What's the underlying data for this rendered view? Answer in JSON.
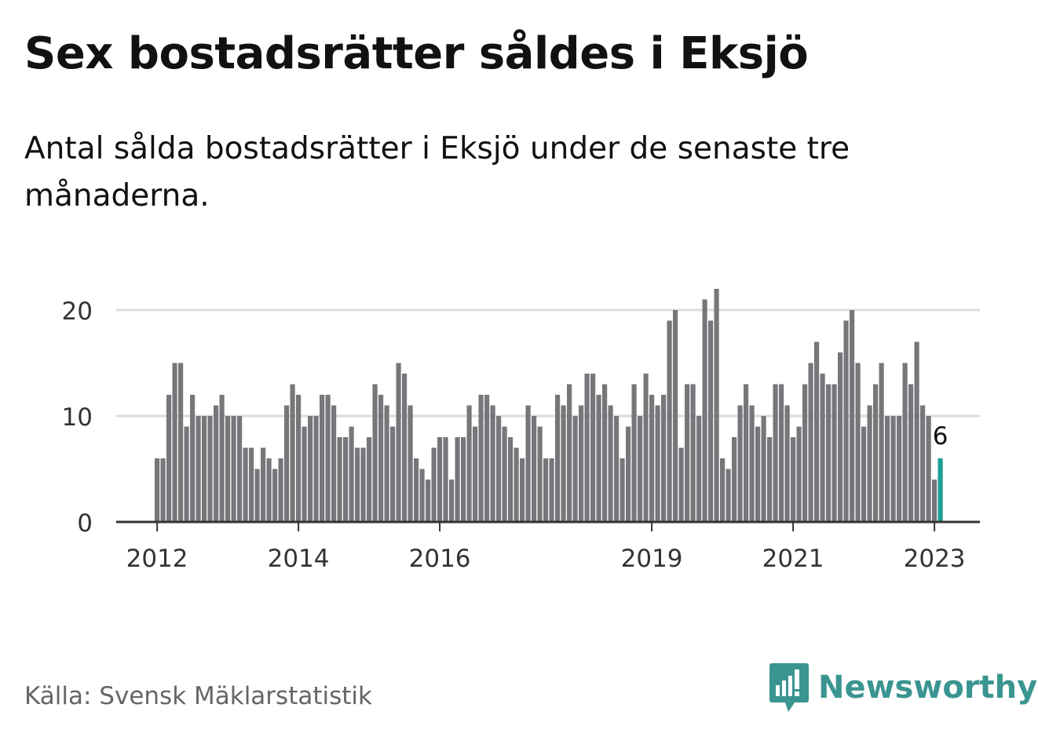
{
  "header": {
    "title": "Sex bostadsrätter såldes i Eksjö",
    "subtitle": "Antal sålda bostadsrätter i Eksjö under de senaste tre månaderna."
  },
  "footer": {
    "source": "Källa: Svensk Mäklarstatistik",
    "brand": "Newsworthy"
  },
  "colors": {
    "bar": "#77767a",
    "highlight": "#1b9e94",
    "grid": "#dcdcdc",
    "axis": "#333333",
    "brand": "#3a9591"
  },
  "chart_data": {
    "type": "bar",
    "title": "Sex bostadsrätter såldes i Eksjö",
    "xlabel": "",
    "ylabel": "",
    "ylim": [
      0,
      22
    ],
    "yticks": [
      0,
      10,
      20
    ],
    "x_start": 2012.0,
    "x_step": 0.08333,
    "xticks": [
      "2012",
      "2014",
      "2016",
      "2019",
      "2021",
      "2023"
    ],
    "xtick_values": [
      2012,
      2014,
      2016,
      2019,
      2021,
      2023
    ],
    "values": [
      6,
      6,
      12,
      15,
      15,
      9,
      12,
      10,
      10,
      10,
      11,
      12,
      10,
      10,
      10,
      7,
      7,
      5,
      7,
      6,
      5,
      6,
      11,
      13,
      12,
      9,
      10,
      10,
      12,
      12,
      11,
      8,
      8,
      9,
      7,
      7,
      8,
      13,
      12,
      11,
      9,
      15,
      14,
      11,
      6,
      5,
      4,
      7,
      8,
      8,
      4,
      8,
      8,
      11,
      9,
      12,
      12,
      11,
      10,
      9,
      8,
      7,
      6,
      11,
      10,
      9,
      6,
      6,
      12,
      11,
      13,
      10,
      11,
      14,
      14,
      12,
      13,
      11,
      10,
      6,
      9,
      13,
      10,
      14,
      12,
      11,
      12,
      19,
      20,
      7,
      13,
      13,
      10,
      21,
      19,
      22,
      6,
      5,
      8,
      11,
      13,
      11,
      9,
      10,
      8,
      13,
      13,
      11,
      8,
      9,
      13,
      15,
      17,
      14,
      13,
      13,
      16,
      19,
      20,
      15,
      9,
      11,
      13,
      15,
      10,
      10,
      10,
      15,
      13,
      17,
      11,
      10,
      4,
      6
    ],
    "highlight_index": 133,
    "highlight_label": "6"
  }
}
